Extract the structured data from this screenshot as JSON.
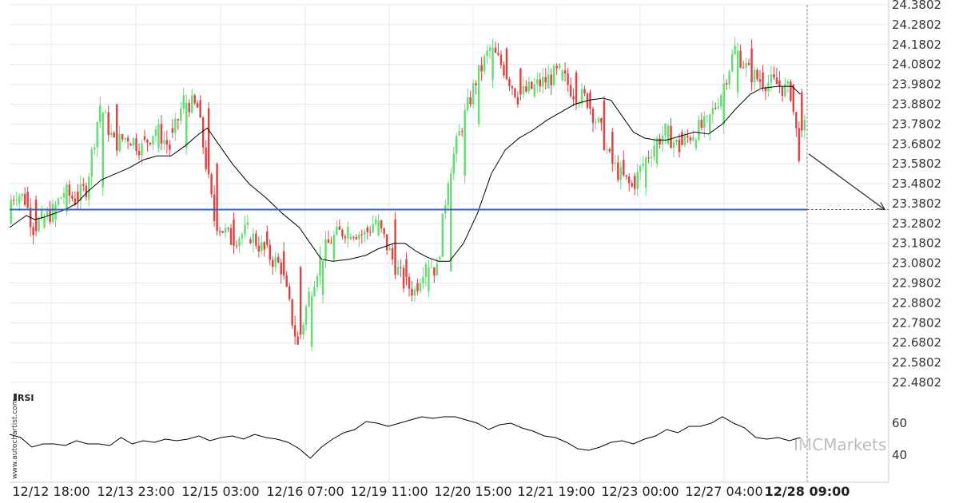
{
  "chart_data": [
    {
      "type": "candlestick",
      "ylim": [
        22.4802,
        24.3802
      ],
      "y_ticks": [
        "24.3802",
        "24.2802",
        "24.1802",
        "24.0802",
        "23.9802",
        "23.8802",
        "23.7802",
        "23.6802",
        "23.5802",
        "23.4802",
        "23.3802",
        "23.2802",
        "23.1802",
        "23.0802",
        "22.9802",
        "22.8802",
        "22.7802",
        "22.6802",
        "22.5802",
        "22.4802"
      ],
      "x_ticks": [
        "12/12 18:00",
        "12/13 23:00",
        "12/15 03:00",
        "12/16 07:00",
        "12/19 11:00",
        "12/20 15:00",
        "12/21 19:00",
        "12/23 00:00",
        "12/27 04:00",
        "12/28 09:00"
      ],
      "highlight_tick": "12/28 09:00",
      "support_level": 23.35,
      "forecast_target": 23.35,
      "moving_average": [
        [
          0,
          23.26
        ],
        [
          3,
          23.29
        ],
        [
          6,
          23.32
        ],
        [
          9,
          23.3
        ],
        [
          12,
          23.31
        ],
        [
          16,
          23.33
        ],
        [
          20,
          23.35
        ],
        [
          24,
          23.38
        ],
        [
          28,
          23.44
        ],
        [
          33,
          23.5
        ],
        [
          38,
          23.53
        ],
        [
          43,
          23.56
        ],
        [
          48,
          23.6
        ],
        [
          53,
          23.62
        ],
        [
          58,
          23.62
        ],
        [
          63,
          23.67
        ],
        [
          68,
          23.73
        ],
        [
          71,
          23.76
        ],
        [
          74,
          23.7
        ],
        [
          80,
          23.58
        ],
        [
          86,
          23.48
        ],
        [
          92,
          23.41
        ],
        [
          98,
          23.33
        ],
        [
          104,
          23.26
        ],
        [
          108,
          23.18
        ],
        [
          112,
          23.1
        ],
        [
          116,
          23.09
        ],
        [
          122,
          23.1
        ],
        [
          128,
          23.12
        ],
        [
          132,
          23.15
        ],
        [
          138,
          23.18
        ],
        [
          142,
          23.18
        ],
        [
          146,
          23.14
        ],
        [
          150,
          23.11
        ],
        [
          154,
          23.09
        ],
        [
          158,
          23.09
        ],
        [
          163,
          23.18
        ],
        [
          168,
          23.33
        ],
        [
          173,
          23.53
        ],
        [
          178,
          23.65
        ],
        [
          183,
          23.71
        ],
        [
          188,
          23.75
        ],
        [
          193,
          23.8
        ],
        [
          198,
          23.84
        ],
        [
          203,
          23.88
        ],
        [
          208,
          23.9
        ],
        [
          213,
          23.91
        ],
        [
          216,
          23.9
        ],
        [
          220,
          23.82
        ],
        [
          224,
          23.74
        ],
        [
          228,
          23.71
        ],
        [
          232,
          23.7
        ],
        [
          236,
          23.7
        ],
        [
          241,
          23.72
        ],
        [
          246,
          23.74
        ],
        [
          251,
          23.73
        ],
        [
          256,
          23.78
        ],
        [
          261,
          23.86
        ],
        [
          266,
          23.93
        ],
        [
          270,
          23.96
        ],
        [
          276,
          23.97
        ],
        [
          281,
          23.97
        ],
        [
          284,
          23.93
        ]
      ],
      "candles": [
        [
          0,
          23.28,
          23.38,
          23.26,
          23.4
        ],
        [
          3,
          23.38,
          23.44,
          23.36,
          23.52
        ],
        [
          6,
          23.44,
          23.4,
          23.28,
          23.5
        ],
        [
          9,
          23.4,
          23.26,
          23.18,
          23.42
        ],
        [
          12,
          23.26,
          23.3,
          23.12,
          23.32
        ],
        [
          16,
          23.3,
          23.34,
          23.24,
          23.38
        ],
        [
          20,
          23.34,
          23.44,
          23.3,
          23.48
        ],
        [
          24,
          23.44,
          23.4,
          23.34,
          23.5
        ],
        [
          28,
          23.4,
          23.46,
          23.34,
          23.5
        ],
        [
          33,
          23.46,
          23.88,
          23.4,
          24.02
        ],
        [
          38,
          23.88,
          23.68,
          23.6,
          24.0
        ],
        [
          43,
          23.68,
          23.72,
          23.62,
          23.78
        ],
        [
          48,
          23.72,
          23.66,
          23.6,
          23.76
        ],
        [
          53,
          23.66,
          23.76,
          23.62,
          23.82
        ],
        [
          58,
          23.76,
          23.66,
          23.6,
          23.8
        ],
        [
          63,
          23.66,
          23.9,
          23.4,
          23.98
        ],
        [
          68,
          23.9,
          23.86,
          23.8,
          23.94
        ],
        [
          71,
          23.86,
          23.58,
          23.44,
          23.9
        ],
        [
          74,
          23.58,
          23.3,
          23.26,
          23.62
        ],
        [
          80,
          23.3,
          23.2,
          23.08,
          23.34
        ],
        [
          86,
          23.2,
          23.24,
          23.1,
          23.36
        ],
        [
          92,
          23.24,
          23.14,
          23.04,
          23.28
        ],
        [
          98,
          23.14,
          23.06,
          22.98,
          23.2
        ],
        [
          104,
          23.06,
          22.66,
          22.56,
          23.08
        ],
        [
          108,
          22.66,
          22.92,
          22.64,
          22.96
        ],
        [
          112,
          22.92,
          23.1,
          22.88,
          23.26
        ],
        [
          116,
          23.1,
          23.2,
          23.06,
          23.24
        ],
        [
          122,
          23.2,
          23.26,
          23.14,
          23.34
        ],
        [
          128,
          23.26,
          23.22,
          23.16,
          23.32
        ],
        [
          132,
          23.22,
          23.3,
          23.18,
          23.36
        ],
        [
          138,
          23.3,
          23.1,
          23.04,
          23.34
        ],
        [
          142,
          23.1,
          22.98,
          22.88,
          23.14
        ],
        [
          146,
          22.98,
          22.94,
          22.86,
          23.04
        ],
        [
          150,
          22.94,
          23.1,
          22.9,
          23.2
        ],
        [
          154,
          23.1,
          23.04,
          22.92,
          23.14
        ],
        [
          158,
          23.04,
          23.52,
          23.0,
          23.7
        ],
        [
          163,
          23.52,
          23.78,
          23.48,
          23.88
        ],
        [
          168,
          23.78,
          24.0,
          23.74,
          24.1
        ],
        [
          173,
          24.0,
          24.16,
          23.96,
          24.26
        ],
        [
          178,
          24.16,
          24.06,
          23.96,
          24.28
        ],
        [
          183,
          24.06,
          23.92,
          23.86,
          24.12
        ],
        [
          188,
          23.92,
          23.96,
          23.84,
          24.06
        ],
        [
          193,
          23.96,
          24.0,
          23.9,
          24.1
        ],
        [
          198,
          24.0,
          24.04,
          23.9,
          24.1
        ],
        [
          203,
          24.04,
          23.94,
          23.86,
          24.08
        ],
        [
          208,
          23.94,
          23.9,
          23.84,
          23.98
        ],
        [
          213,
          23.9,
          23.74,
          23.64,
          23.94
        ],
        [
          216,
          23.74,
          23.6,
          23.56,
          23.84
        ],
        [
          220,
          23.6,
          23.52,
          23.4,
          23.64
        ],
        [
          224,
          23.52,
          23.46,
          23.38,
          23.58
        ],
        [
          228,
          23.46,
          23.58,
          23.44,
          23.64
        ],
        [
          232,
          23.58,
          23.68,
          23.54,
          23.72
        ],
        [
          236,
          23.68,
          23.74,
          23.64,
          23.78
        ],
        [
          241,
          23.74,
          23.66,
          23.56,
          23.84
        ],
        [
          246,
          23.66,
          23.74,
          23.58,
          23.8
        ],
        [
          251,
          23.74,
          23.78,
          23.68,
          23.84
        ],
        [
          256,
          23.78,
          23.94,
          23.72,
          24.0
        ],
        [
          261,
          23.94,
          24.16,
          23.9,
          24.22
        ],
        [
          266,
          24.16,
          24.04,
          23.94,
          24.26
        ],
        [
          270,
          24.04,
          24.0,
          23.92,
          24.1
        ],
        [
          276,
          24.0,
          23.98,
          23.92,
          24.06
        ],
        [
          281,
          23.98,
          23.94,
          23.9,
          24.02
        ],
        [
          284,
          23.94,
          23.64,
          23.62,
          23.98
        ],
        [
          286,
          23.64,
          23.76,
          23.62,
          23.78
        ]
      ]
    },
    {
      "type": "line",
      "title": "RSI",
      "y_ticks": [
        "60",
        "40"
      ],
      "ylim": [
        30,
        70
      ],
      "values": [
        [
          0,
          53
        ],
        [
          4,
          51
        ],
        [
          8,
          45
        ],
        [
          12,
          47
        ],
        [
          16,
          47
        ],
        [
          20,
          46
        ],
        [
          24,
          49
        ],
        [
          28,
          47
        ],
        [
          32,
          47
        ],
        [
          36,
          46
        ],
        [
          40,
          51
        ],
        [
          44,
          47
        ],
        [
          48,
          49
        ],
        [
          52,
          48
        ],
        [
          56,
          50
        ],
        [
          60,
          49
        ],
        [
          64,
          50
        ],
        [
          68,
          52
        ],
        [
          72,
          49
        ],
        [
          76,
          51
        ],
        [
          80,
          52
        ],
        [
          84,
          50
        ],
        [
          88,
          53
        ],
        [
          92,
          51
        ],
        [
          96,
          50
        ],
        [
          100,
          48
        ],
        [
          104,
          44
        ],
        [
          108,
          38
        ],
        [
          112,
          45
        ],
        [
          116,
          50
        ],
        [
          120,
          54
        ],
        [
          124,
          56
        ],
        [
          128,
          61
        ],
        [
          132,
          60
        ],
        [
          136,
          58
        ],
        [
          140,
          60
        ],
        [
          144,
          62
        ],
        [
          148,
          64
        ],
        [
          152,
          63
        ],
        [
          156,
          64
        ],
        [
          160,
          64
        ],
        [
          164,
          62
        ],
        [
          168,
          60
        ],
        [
          172,
          56
        ],
        [
          176,
          59
        ],
        [
          180,
          60
        ],
        [
          184,
          57
        ],
        [
          188,
          55
        ],
        [
          192,
          52
        ],
        [
          196,
          51
        ],
        [
          200,
          48
        ],
        [
          204,
          44
        ],
        [
          208,
          43
        ],
        [
          212,
          45
        ],
        [
          216,
          48
        ],
        [
          220,
          49
        ],
        [
          224,
          47
        ],
        [
          228,
          50
        ],
        [
          232,
          52
        ],
        [
          236,
          56
        ],
        [
          240,
          54
        ],
        [
          244,
          58
        ],
        [
          248,
          58
        ],
        [
          252,
          60
        ],
        [
          256,
          64
        ],
        [
          260,
          60
        ],
        [
          264,
          57
        ],
        [
          268,
          51
        ],
        [
          272,
          50
        ],
        [
          276,
          51
        ],
        [
          280,
          49
        ],
        [
          284,
          51
        ]
      ]
    }
  ],
  "watermark": {
    "logo": "IMCMarkets",
    "logo_prefix": "I",
    "logo_initial": "M",
    "logo_rest": "CMarkets"
  },
  "credit": "www.autochartist.com",
  "colors": {
    "up": "#66dd77",
    "down": "#dd4444",
    "support": "#3366bb",
    "ma": "#000000",
    "grid": "#e8e8e8"
  }
}
